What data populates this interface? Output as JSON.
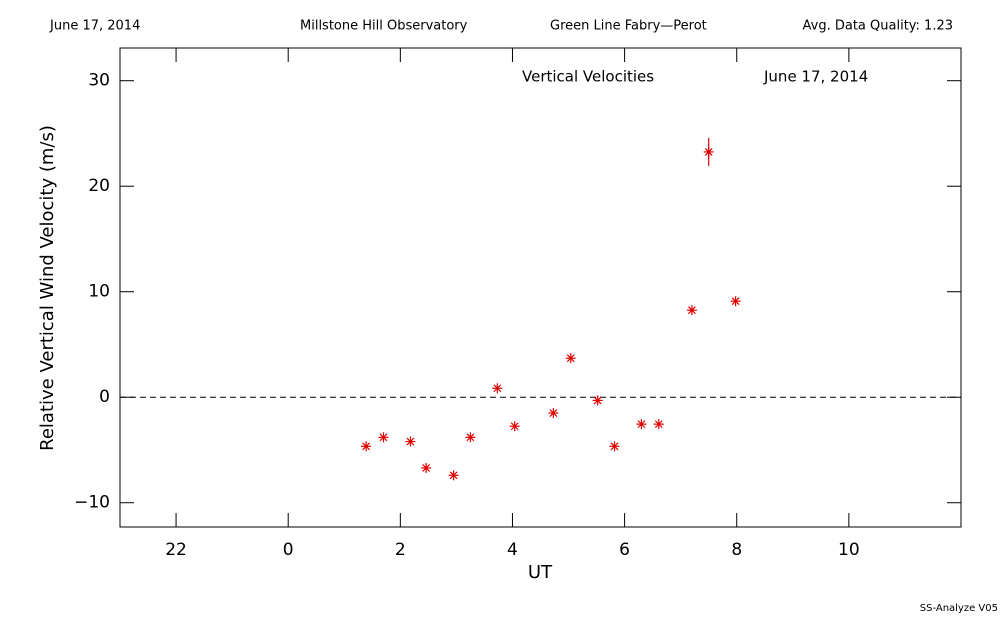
{
  "chart_data": {
    "type": "scatter",
    "header": [
      "June 17, 2014",
      "Millstone Hill Observatory",
      "Green Line Fabry—Perot",
      "Avg. Data Quality: 1.23"
    ],
    "title": "Vertical Velocities",
    "subtitle": "June 17, 2014",
    "xlabel": "UT",
    "ylabel": "Relative Vertical Wind Velocity (m/s)",
    "footer": "SS-Analyze V05",
    "xlim": [
      -3,
      12
    ],
    "xticks": [
      {
        "value": -2,
        "label": "22"
      },
      0,
      2,
      4,
      6,
      8,
      10
    ],
    "ylim": [
      -12.3,
      33.1
    ],
    "yticks": [
      {
        "value": -10,
        "label": "−10"
      },
      0,
      10,
      20,
      30
    ],
    "reference_line": 0,
    "series": [
      {
        "color": "#e00000",
        "x": [
          1.39,
          1.7,
          2.18,
          2.46,
          2.95,
          3.25,
          3.73,
          4.04,
          4.73,
          5.04,
          5.52,
          5.82,
          6.3,
          6.61,
          7.2,
          7.5,
          7.98
        ],
        "values": [
          -4.65,
          -3.8,
          -4.2,
          -6.7,
          -7.4,
          -3.8,
          0.85,
          -2.75,
          -1.5,
          3.7,
          -0.3,
          -4.65,
          -2.55,
          -2.55,
          8.25,
          23.25,
          9.1
        ],
        "errors": [
          null,
          null,
          null,
          null,
          null,
          null,
          null,
          null,
          null,
          null,
          null,
          null,
          null,
          null,
          null,
          1.33,
          null
        ]
      }
    ]
  }
}
